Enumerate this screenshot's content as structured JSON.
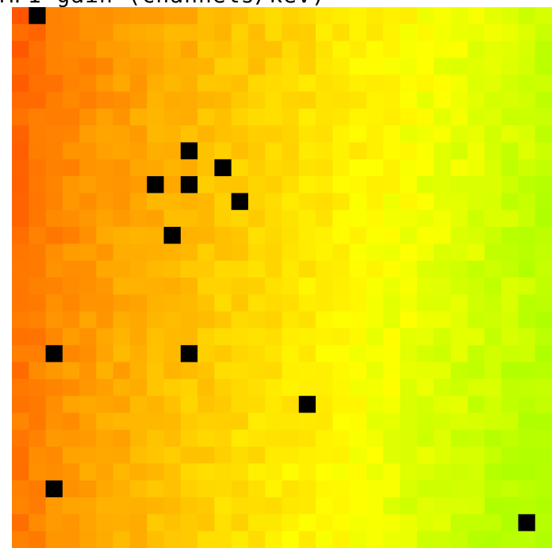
{
  "title": "MPI gain (channels/keV)",
  "chart_data": {
    "type": "heatmap",
    "title": "MPI gain (channels/keV)",
    "grid": {
      "cols": 32,
      "rows": 32
    },
    "colormap": "red-orange-yellow-green",
    "color_range": {
      "low_color": "#ff4500",
      "mid_color": "#ffff00",
      "high_color": "#b0ff00"
    },
    "masked_color": "#000000",
    "masked_cells": [
      [
        1,
        0
      ],
      [
        10,
        8
      ],
      [
        12,
        9
      ],
      [
        8,
        10
      ],
      [
        10,
        10
      ],
      [
        13,
        11
      ],
      [
        9,
        13
      ],
      [
        2,
        20
      ],
      [
        10,
        20
      ],
      [
        17,
        23
      ],
      [
        2,
        28
      ],
      [
        30,
        30
      ]
    ]
  }
}
